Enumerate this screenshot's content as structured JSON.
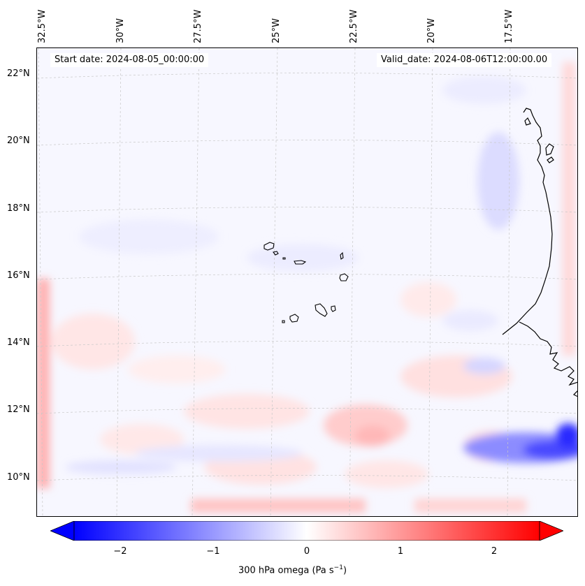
{
  "header": {
    "start_date": "Start date: 2024-08-05_00:00:00",
    "valid_date": "Valid_date: 2024-08-06T12:00:00.00"
  },
  "longitude_labels": [
    "32.5°W",
    "30°W",
    "27.5°W",
    "25°W",
    "22.5°W",
    "20°W",
    "17.5°W"
  ],
  "latitude_labels": [
    "22°N",
    "20°N",
    "18°N",
    "16°N",
    "14°N",
    "12°N",
    "10°N"
  ],
  "colorbar": {
    "ticks": [
      "−2",
      "−1",
      "0",
      "1",
      "2"
    ],
    "label": "300 hPa omega (Pa s",
    "label_unit_sup": "−1",
    "label_suffix": ")",
    "colormap": "bwr",
    "range": [
      -2.75,
      2.75
    ],
    "extend": "both"
  },
  "colors": {
    "negative": "#0000ff",
    "neutral": "#ffffff",
    "positive": "#ff0000",
    "coastline": "#000000",
    "gridline": "#c8c8c8"
  }
}
